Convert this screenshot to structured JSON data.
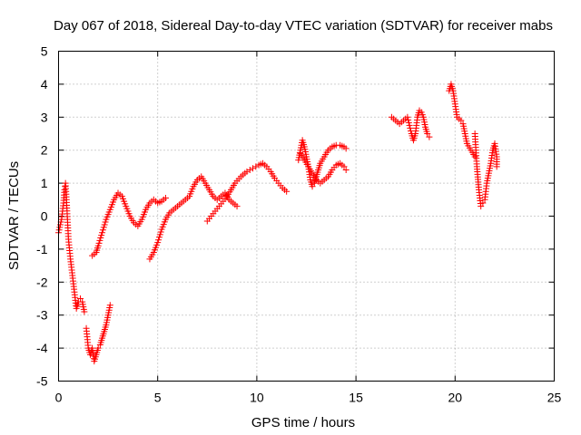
{
  "chart_data": {
    "type": "scatter",
    "title": "Day 067 of 2018, Sidereal Day-to-day VTEC variation (SDTVAR) for receiver mabs",
    "xlabel": "GPS time / hours",
    "ylabel": "SDTVAR / TECUs",
    "xlim": [
      0,
      25
    ],
    "ylim": [
      -5,
      5
    ],
    "x_ticks": [
      "0",
      "5",
      "10",
      "15",
      "20",
      "25"
    ],
    "y_ticks": [
      "-5",
      "-4",
      "-3",
      "-2",
      "-1",
      "0",
      "1",
      "2",
      "3",
      "4",
      "5"
    ],
    "grid": true,
    "marker": "+",
    "color": "#ff0000",
    "segments": [
      [
        [
          0.0,
          -0.5
        ],
        [
          0.15,
          -0.1
        ],
        [
          0.25,
          0.4
        ],
        [
          0.3,
          0.8
        ],
        [
          0.35,
          1.0
        ],
        [
          0.4,
          0.5
        ],
        [
          0.45,
          -0.1
        ],
        [
          0.5,
          -0.7
        ],
        [
          0.6,
          -1.3
        ],
        [
          0.7,
          -1.8
        ],
        [
          0.8,
          -2.3
        ],
        [
          0.9,
          -2.8
        ],
        [
          1.0,
          -2.6
        ],
        [
          1.1,
          -2.5
        ],
        [
          1.2,
          -2.6
        ],
        [
          1.3,
          -2.9
        ]
      ],
      [
        [
          1.4,
          -3.4
        ],
        [
          1.5,
          -4.0
        ],
        [
          1.6,
          -4.2
        ],
        [
          1.7,
          -4.0
        ],
        [
          1.8,
          -4.4
        ],
        [
          1.9,
          -4.2
        ],
        [
          2.0,
          -4.0
        ],
        [
          2.1,
          -3.9
        ],
        [
          2.2,
          -3.7
        ],
        [
          2.3,
          -3.5
        ],
        [
          2.4,
          -3.3
        ],
        [
          2.5,
          -3.0
        ],
        [
          2.6,
          -2.7
        ]
      ],
      [
        [
          1.7,
          -1.2
        ],
        [
          1.9,
          -1.1
        ],
        [
          2.0,
          -0.9
        ],
        [
          2.2,
          -0.5
        ],
        [
          2.4,
          -0.1
        ],
        [
          2.6,
          0.2
        ],
        [
          2.8,
          0.5
        ],
        [
          3.0,
          0.7
        ],
        [
          3.2,
          0.6
        ],
        [
          3.4,
          0.3
        ],
        [
          3.6,
          0.0
        ],
        [
          3.8,
          -0.2
        ],
        [
          4.0,
          -0.3
        ],
        [
          4.2,
          -0.1
        ],
        [
          4.4,
          0.2
        ],
        [
          4.6,
          0.4
        ],
        [
          4.8,
          0.5
        ],
        [
          5.0,
          0.4
        ],
        [
          5.2,
          0.45
        ],
        [
          5.4,
          0.55
        ]
      ],
      [
        [
          4.6,
          -1.3
        ],
        [
          4.8,
          -1.1
        ],
        [
          5.0,
          -0.8
        ],
        [
          5.2,
          -0.4
        ],
        [
          5.4,
          -0.1
        ],
        [
          5.6,
          0.1
        ],
        [
          5.8,
          0.2
        ],
        [
          6.0,
          0.3
        ],
        [
          6.2,
          0.4
        ],
        [
          6.4,
          0.5
        ],
        [
          6.6,
          0.6
        ],
        [
          6.8,
          0.9
        ],
        [
          7.0,
          1.1
        ],
        [
          7.2,
          1.2
        ],
        [
          7.4,
          1.0
        ],
        [
          7.6,
          0.8
        ],
        [
          7.8,
          0.6
        ],
        [
          8.0,
          0.5
        ],
        [
          8.2,
          0.6
        ],
        [
          8.4,
          0.7
        ],
        [
          8.6,
          0.5
        ],
        [
          8.8,
          0.4
        ],
        [
          9.0,
          0.3
        ]
      ],
      [
        [
          7.5,
          -0.15
        ],
        [
          7.7,
          0.0
        ],
        [
          7.9,
          0.15
        ],
        [
          8.1,
          0.3
        ],
        [
          8.3,
          0.45
        ],
        [
          8.5,
          0.6
        ],
        [
          8.7,
          0.8
        ],
        [
          8.9,
          1.0
        ],
        [
          9.2,
          1.2
        ],
        [
          9.5,
          1.35
        ],
        [
          9.8,
          1.45
        ],
        [
          10.1,
          1.55
        ],
        [
          10.3,
          1.6
        ],
        [
          10.5,
          1.5
        ],
        [
          10.7,
          1.35
        ],
        [
          10.9,
          1.15
        ],
        [
          11.1,
          1.0
        ],
        [
          11.3,
          0.85
        ],
        [
          11.5,
          0.75
        ]
      ],
      [
        [
          12.1,
          1.7
        ],
        [
          12.2,
          2.0
        ],
        [
          12.3,
          2.3
        ],
        [
          12.4,
          2.1
        ],
        [
          12.5,
          1.8
        ],
        [
          12.6,
          1.5
        ],
        [
          12.7,
          1.1
        ],
        [
          12.8,
          0.9
        ],
        [
          12.9,
          1.0
        ],
        [
          13.0,
          1.2
        ],
        [
          13.1,
          1.4
        ],
        [
          13.2,
          1.6
        ],
        [
          13.4,
          1.8
        ],
        [
          13.6,
          2.0
        ],
        [
          13.8,
          2.1
        ],
        [
          14.0,
          2.15
        ],
        [
          14.2,
          2.15
        ],
        [
          14.4,
          2.1
        ],
        [
          14.5,
          2.05
        ]
      ],
      [
        [
          12.2,
          1.9
        ],
        [
          12.4,
          1.7
        ],
        [
          12.6,
          1.5
        ],
        [
          12.8,
          1.3
        ],
        [
          13.0,
          1.1
        ],
        [
          13.2,
          1.0
        ],
        [
          13.4,
          1.1
        ],
        [
          13.6,
          1.2
        ],
        [
          13.8,
          1.4
        ],
        [
          14.0,
          1.55
        ],
        [
          14.2,
          1.6
        ],
        [
          14.4,
          1.5
        ],
        [
          14.5,
          1.4
        ]
      ],
      [
        [
          16.8,
          3.0
        ],
        [
          17.0,
          2.9
        ],
        [
          17.2,
          2.8
        ],
        [
          17.4,
          2.9
        ],
        [
          17.6,
          3.0
        ],
        [
          17.8,
          2.5
        ],
        [
          17.9,
          2.3
        ],
        [
          18.0,
          2.5
        ],
        [
          18.1,
          3.0
        ],
        [
          18.2,
          3.2
        ],
        [
          18.3,
          3.15
        ],
        [
          18.4,
          3.0
        ],
        [
          18.5,
          2.7
        ],
        [
          18.6,
          2.5
        ],
        [
          18.7,
          2.4
        ]
      ],
      [
        [
          19.7,
          3.8
        ],
        [
          19.8,
          4.0
        ],
        [
          19.9,
          3.8
        ],
        [
          20.0,
          3.4
        ],
        [
          20.1,
          3.0
        ],
        [
          20.3,
          2.9
        ],
        [
          20.4,
          2.8
        ],
        [
          20.5,
          2.5
        ],
        [
          20.6,
          2.2
        ],
        [
          20.8,
          2.0
        ],
        [
          21.0,
          1.8
        ]
      ],
      [
        [
          21.0,
          2.5
        ],
        [
          21.1,
          1.5
        ],
        [
          21.2,
          0.8
        ],
        [
          21.3,
          0.3
        ],
        [
          21.4,
          0.4
        ],
        [
          21.5,
          0.5
        ],
        [
          21.6,
          1.0
        ],
        [
          21.7,
          1.3
        ],
        [
          21.8,
          1.6
        ],
        [
          21.9,
          2.0
        ],
        [
          22.0,
          2.2
        ],
        [
          22.1,
          1.8
        ],
        [
          22.1,
          1.5
        ]
      ]
    ]
  }
}
